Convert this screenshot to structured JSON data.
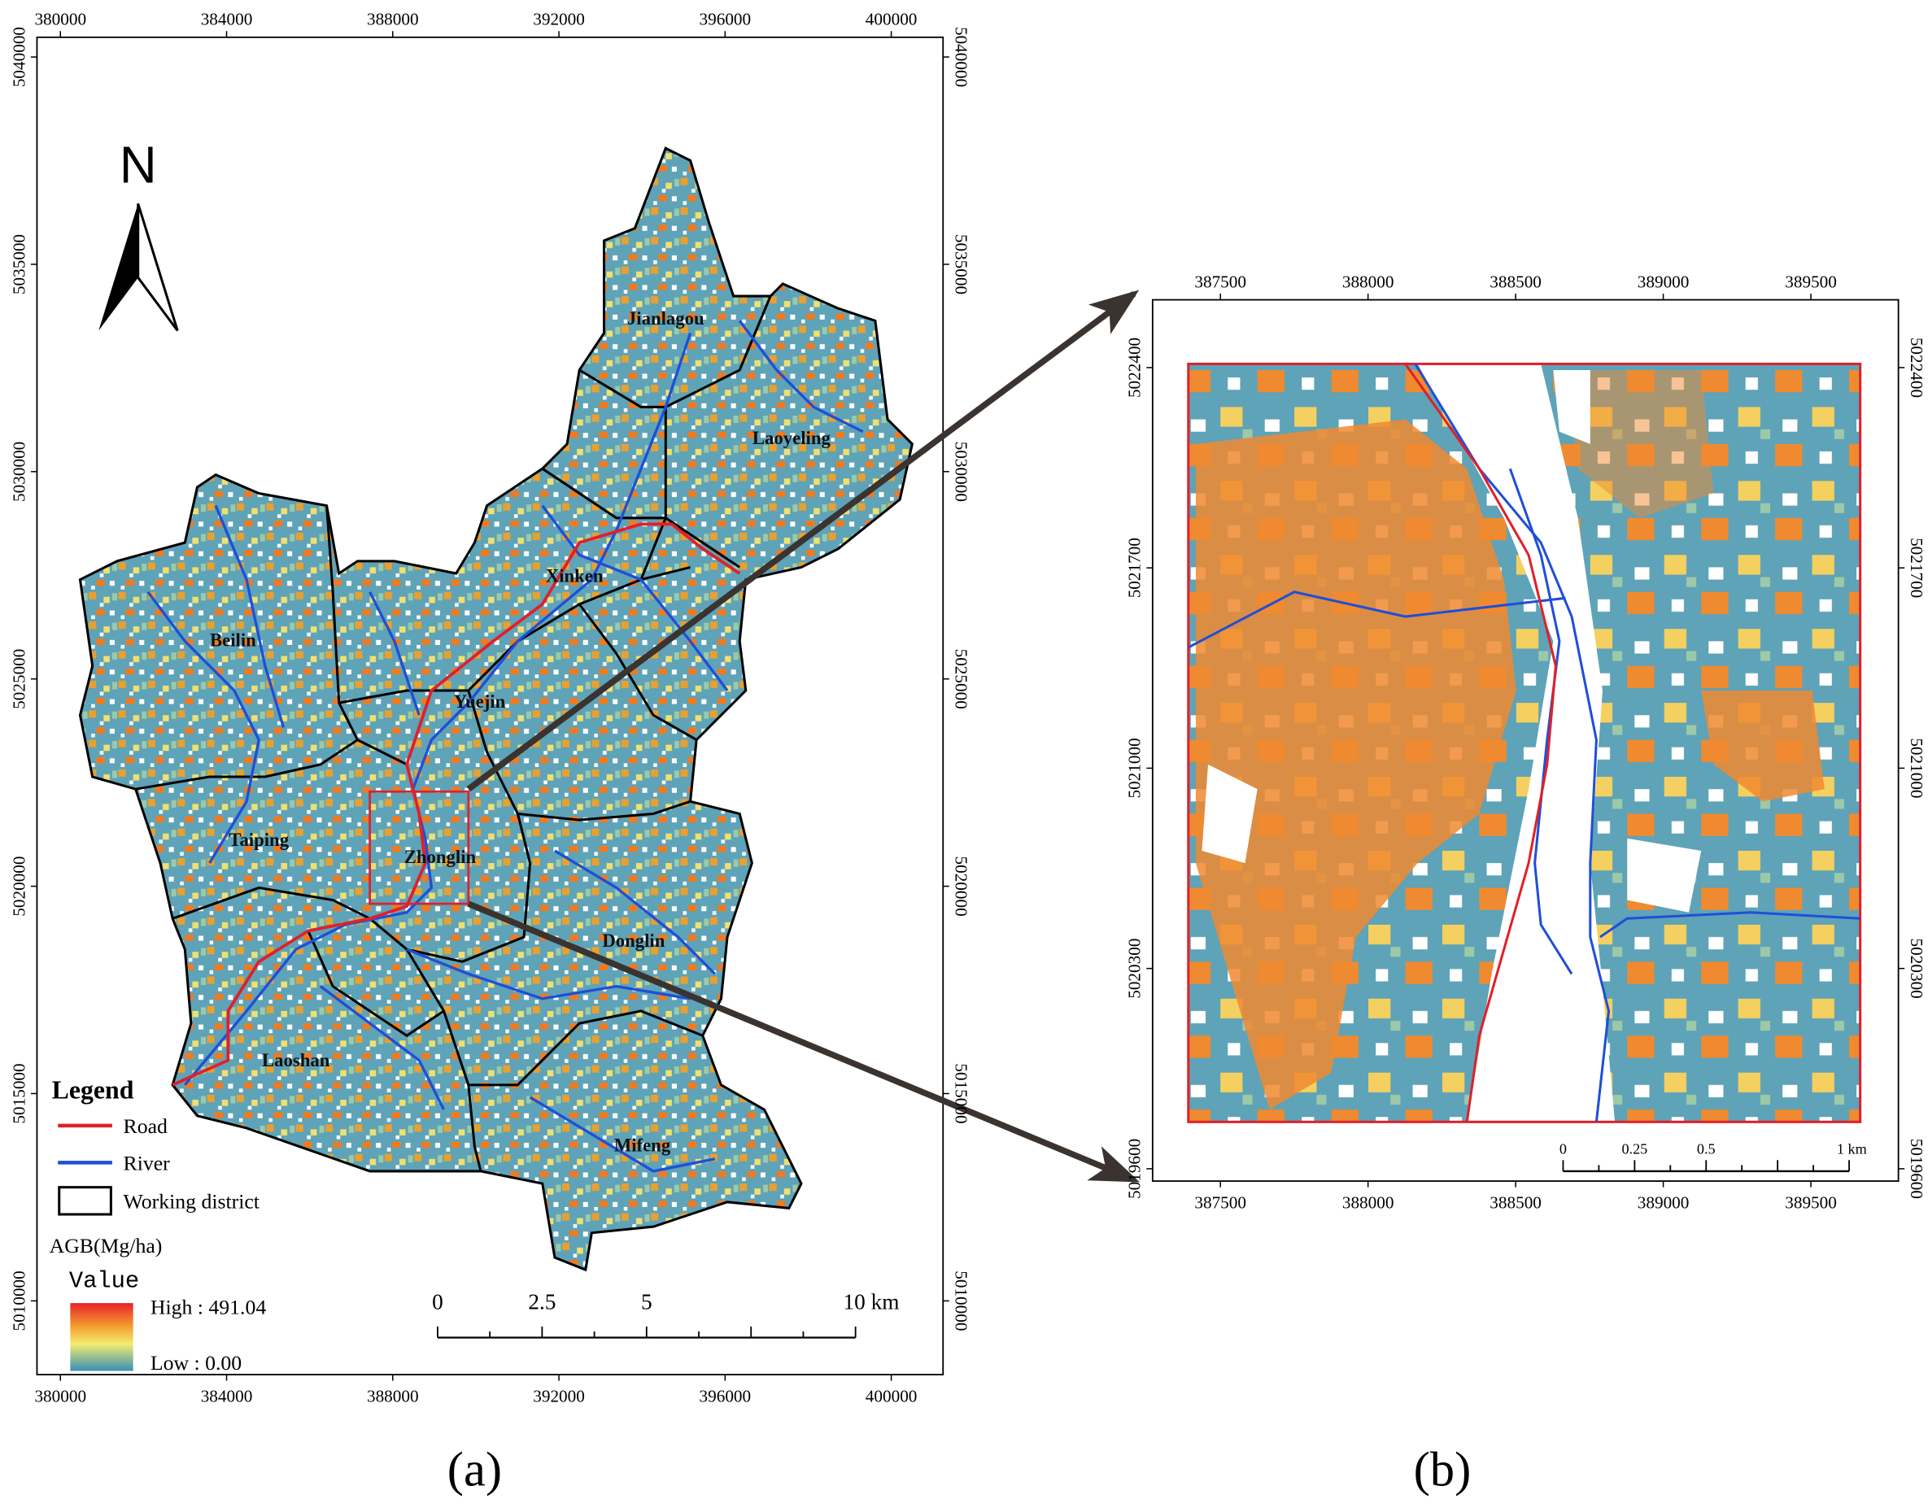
{
  "panel_a": {
    "caption": "(a)",
    "north": "N",
    "x_ticks": [
      380000,
      384000,
      388000,
      392000,
      396000,
      400000
    ],
    "y_ticks": [
      5010000,
      5015000,
      5020000,
      5025000,
      5030000,
      5035000,
      5040000
    ],
    "districts": [
      "Jianlagou",
      "Laoyeling",
      "Xinken",
      "Beilin",
      "Yuejin",
      "Taiping",
      "Zhonglin",
      "Donglin",
      "Laoshan",
      "Mifeng"
    ],
    "legend": {
      "title": "Legend",
      "items": [
        "Road",
        "River",
        "Working district"
      ],
      "agb_title": "AGB(Mg/ha)",
      "value_title": "Value",
      "high": "High : 491.04",
      "low": "Low : 0.00"
    },
    "scale_bar": [
      "0",
      "2.5",
      "5",
      "10 km"
    ]
  },
  "panel_b": {
    "caption": "(b)",
    "x_ticks": [
      387500,
      388000,
      388500,
      389000,
      389500
    ],
    "y_ticks": [
      5019600,
      5020300,
      5021000,
      5021700,
      5022400
    ],
    "scale_bar": [
      "0",
      "0.25",
      "0.5",
      "1 km"
    ]
  }
}
